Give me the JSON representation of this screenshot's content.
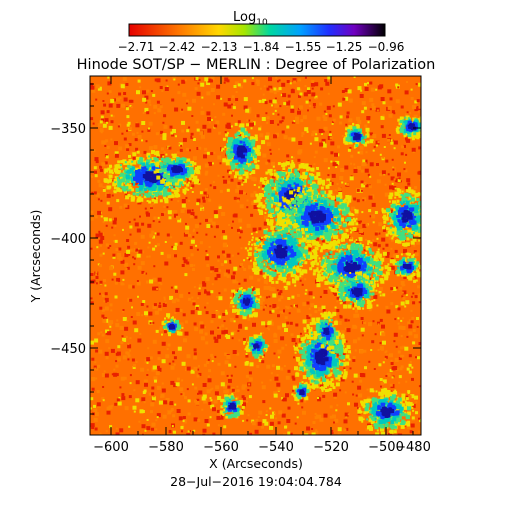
{
  "figure": {
    "colorbar_label": "Log",
    "colorbar_label_subscript": "10",
    "colorbar_ticks": [
      "−2.71",
      "−2.42",
      "−2.13",
      "−1.84",
      "−1.55",
      "−1.25",
      "−0.96"
    ],
    "colorbar_colors": [
      "#e60000",
      "#ff7a00",
      "#ffd700",
      "#a6e600",
      "#00d8a0",
      "#00a0ff",
      "#2030ff",
      "#7000c0",
      "#000000"
    ],
    "title": "Hinode SOT/SP − MERLIN : Degree of Polarization",
    "x_axis_label": "X (Arcseconds)",
    "y_axis_label": "Y (Arcseconds)",
    "x_ticks": [
      "−600",
      "−580",
      "−560",
      "−540",
      "−520",
      "−500",
      "−480"
    ],
    "y_ticks": [
      "−350",
      "−400",
      "−450"
    ],
    "timestamp": "28−Jul−2016 19:04:04.784",
    "map_colors": {
      "red": "#e82000",
      "orange": "#ff8000",
      "yellow": "#f0e000",
      "green": "#40e080",
      "teal": "#00c8c0",
      "blue": "#1040ff",
      "navy": "#1010a0"
    }
  }
}
